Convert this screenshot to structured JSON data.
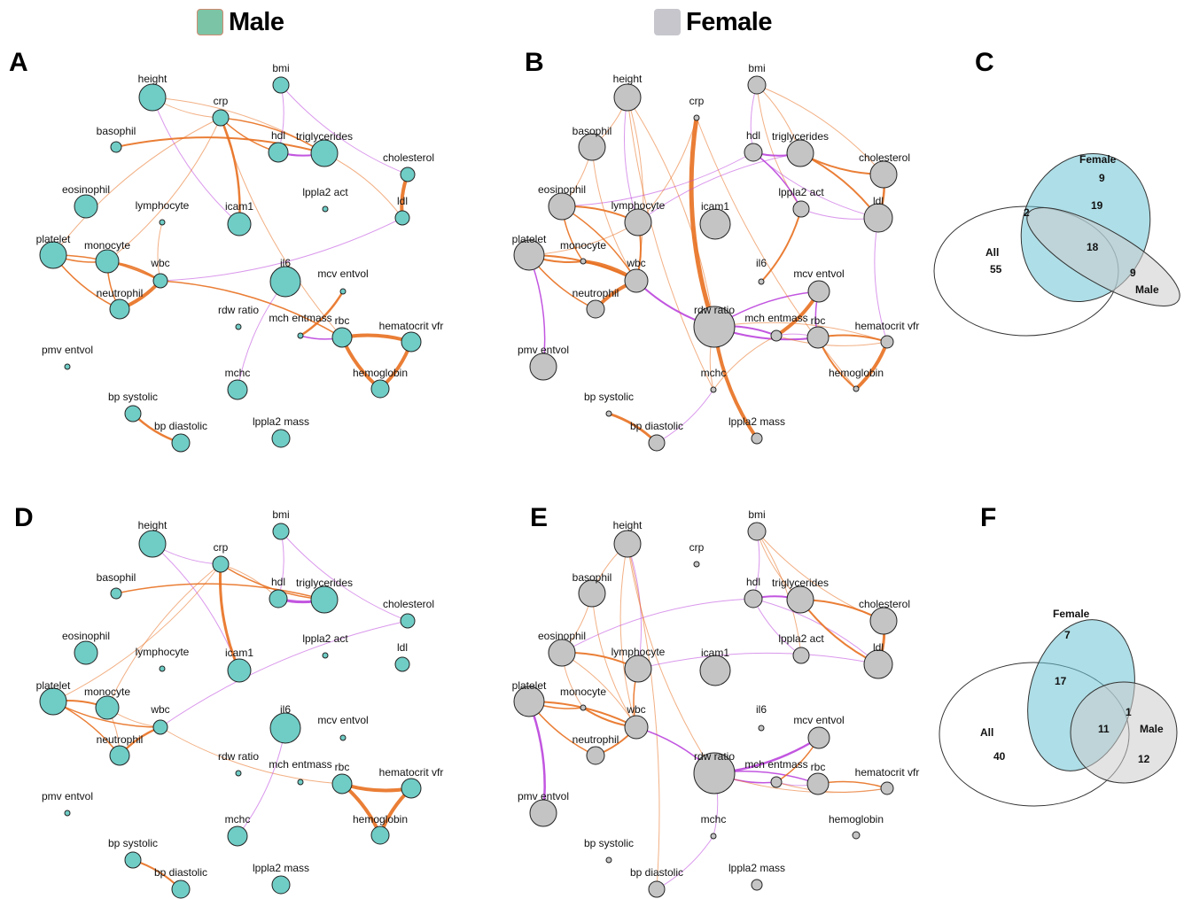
{
  "legend": {
    "male": {
      "label": "Male",
      "color": "#7cc4a6"
    },
    "female": {
      "label": "Female",
      "color": "#c6c6cc"
    }
  },
  "colors": {
    "male_node": "#6fcdc6",
    "female_node": "#c4c4c4",
    "edge_positive": "#e87020",
    "edge_negative": "#bb44dd",
    "venn_female": "#6cc2d4",
    "venn_male": "#cccccc"
  },
  "panels": [
    {
      "letter": "A"
    },
    {
      "letter": "B"
    },
    {
      "letter": "C"
    },
    {
      "letter": "D"
    },
    {
      "letter": "E"
    },
    {
      "letter": "F"
    }
  ],
  "node_labels": {
    "height": "height",
    "bmi": "bmi",
    "crp": "crp",
    "basophil": "basophil",
    "hdl": "hdl",
    "triglycerides": "triglycerides",
    "cholesterol": "cholesterol",
    "eosinophil": "eosinophil",
    "lymphocyte": "lymphocyte",
    "icam1": "icam1",
    "lppla2_act": "lppla2 act",
    "ldl": "ldl",
    "platelet": "platelet",
    "monocyte": "monocyte",
    "wbc": "wbc",
    "il6": "il6",
    "mcv_entvol": "mcv entvol",
    "neutrophil": "neutrophil",
    "rdw_ratio": "rdw ratio",
    "mch_entmass": "mch entmass",
    "rbc": "rbc",
    "hematocrit_vfr": "hematocrit vfr",
    "pmv_entvol": "pmv entvol",
    "mchc": "mchc",
    "hemoglobin": "hemoglobin",
    "bp_systolic": "bp systolic",
    "bp_diastolic": "bp diastolic",
    "lppla2_mass": "lppla2 mass"
  },
  "networks": {
    "A": {
      "sizes": {
        "height": 15,
        "bmi": 9,
        "crp": 9,
        "basophil": 6,
        "hdl": 11,
        "triglycerides": 15,
        "cholesterol": 8,
        "eosinophil": 13,
        "lymphocyte": 3,
        "icam1": 13,
        "lppla2_act": 3,
        "ldl": 8,
        "platelet": 15,
        "monocyte": 13,
        "wbc": 8,
        "il6": 17,
        "mcv_entvol": 3,
        "neutrophil": 11,
        "rdw_ratio": 3,
        "mch_entmass": 3,
        "rbc": 11,
        "hematocrit_vfr": 11,
        "pmv_entvol": 3,
        "mchc": 11,
        "hemoglobin": 10,
        "bp_systolic": 9,
        "bp_diastolic": 10,
        "lppla2_mass": 10
      },
      "edges": [
        [
          "height",
          "crp",
          "pos",
          1
        ],
        [
          "height",
          "triglycerides",
          "pos",
          1
        ],
        [
          "height",
          "icam1",
          "neg",
          1
        ],
        [
          "crp",
          "icam1",
          "pos",
          2.5
        ],
        [
          "crp",
          "hdl",
          "pos",
          1.5
        ],
        [
          "crp",
          "triglycerides",
          "pos",
          1.5
        ],
        [
          "crp",
          "platelet",
          "pos",
          1
        ],
        [
          "crp",
          "monocyte",
          "pos",
          1
        ],
        [
          "crp",
          "rbc",
          "pos",
          1
        ],
        [
          "bmi",
          "hdl",
          "neg",
          1
        ],
        [
          "bmi",
          "cholesterol",
          "neg",
          1
        ],
        [
          "basophil",
          "triglycerides",
          "pos",
          2
        ],
        [
          "hdl",
          "triglycerides",
          "neg",
          2
        ],
        [
          "triglycerides",
          "ldl",
          "pos",
          1
        ],
        [
          "cholesterol",
          "ldl",
          "pos",
          4
        ],
        [
          "ldl",
          "wbc",
          "neg",
          1
        ],
        [
          "platelet",
          "monocyte",
          "pos",
          1.5
        ],
        [
          "platelet",
          "wbc",
          "pos",
          1.5
        ],
        [
          "platelet",
          "neutrophil",
          "pos",
          1.5
        ],
        [
          "monocyte",
          "wbc",
          "pos",
          2
        ],
        [
          "monocyte",
          "neutrophil",
          "pos",
          1.5
        ],
        [
          "wbc",
          "neutrophil",
          "pos",
          4
        ],
        [
          "lymphocyte",
          "wbc",
          "pos",
          1
        ],
        [
          "wbc",
          "rbc",
          "pos",
          1.5
        ],
        [
          "il6",
          "mchc",
          "neg",
          1
        ],
        [
          "mcv_entvol",
          "mch_entmass",
          "pos",
          2.5
        ],
        [
          "mch_entmass",
          "rbc",
          "neg",
          1.5
        ],
        [
          "rbc",
          "hematocrit_vfr",
          "pos",
          4
        ],
        [
          "rbc",
          "hemoglobin",
          "pos",
          4
        ],
        [
          "hematocrit_vfr",
          "hemoglobin",
          "pos",
          4
        ],
        [
          "bp_systolic",
          "bp_diastolic",
          "pos",
          2.5
        ]
      ]
    },
    "B": {
      "sizes": {
        "height": 15,
        "bmi": 10,
        "crp": 3,
        "basophil": 15,
        "hdl": 10,
        "triglycerides": 15,
        "cholesterol": 15,
        "eosinophil": 15,
        "lymphocyte": 15,
        "icam1": 17,
        "lppla2_act": 9,
        "ldl": 16,
        "platelet": 17,
        "monocyte": 3,
        "wbc": 13,
        "il6": 3,
        "mcv_entvol": 12,
        "neutrophil": 10,
        "rdw_ratio": 23,
        "mch_entmass": 6,
        "rbc": 12,
        "hematocrit_vfr": 7,
        "pmv_entvol": 15,
        "mchc": 3,
        "hemoglobin": 3,
        "bp_systolic": 3,
        "bp_diastolic": 9,
        "lppla2_mass": 6
      },
      "edges": [
        [
          "crp",
          "rdw_ratio",
          "pos",
          5
        ],
        [
          "height",
          "basophil",
          "pos",
          1
        ],
        [
          "height",
          "lymphocyte",
          "neg",
          1
        ],
        [
          "height",
          "rdw_ratio",
          "pos",
          1
        ],
        [
          "height",
          "mchc",
          "pos",
          1
        ],
        [
          "height",
          "wbc",
          "pos",
          1
        ],
        [
          "bmi",
          "hdl",
          "neg",
          1
        ],
        [
          "bmi",
          "triglycerides",
          "pos",
          1
        ],
        [
          "bmi",
          "lppla2_act",
          "pos",
          1
        ],
        [
          "bmi",
          "cholesterol",
          "pos",
          1
        ],
        [
          "hdl",
          "triglycerides",
          "neg",
          2
        ],
        [
          "hdl",
          "lppla2_act",
          "neg",
          1.5
        ],
        [
          "hdl",
          "ldl",
          "neg",
          1
        ],
        [
          "hdl",
          "eosinophil",
          "neg",
          1
        ],
        [
          "triglycerides",
          "cholesterol",
          "pos",
          2
        ],
        [
          "triglycerides",
          "ldl",
          "pos",
          2
        ],
        [
          "triglycerides",
          "lymphocyte",
          "neg",
          1
        ],
        [
          "cholesterol",
          "ldl",
          "pos",
          2.5
        ],
        [
          "lppla2_act",
          "ldl",
          "neg",
          1
        ],
        [
          "lppla2_act",
          "il6",
          "pos",
          2
        ],
        [
          "ldl",
          "hematocrit_vfr",
          "neg",
          1
        ],
        [
          "basophil",
          "eosinophil",
          "pos",
          1
        ],
        [
          "basophil",
          "wbc",
          "pos",
          1
        ],
        [
          "eosinophil",
          "lymphocyte",
          "pos",
          2
        ],
        [
          "eosinophil",
          "monocyte",
          "pos",
          1.5
        ],
        [
          "eosinophil",
          "wbc",
          "pos",
          1.5
        ],
        [
          "platelet",
          "monocyte",
          "pos",
          2
        ],
        [
          "platelet",
          "wbc",
          "pos",
          2
        ],
        [
          "platelet",
          "neutrophil",
          "pos",
          1.5
        ],
        [
          "platelet",
          "pmv_entvol",
          "neg",
          1.5
        ],
        [
          "platelet",
          "lymphocyte",
          "pos",
          1
        ],
        [
          "monocyte",
          "wbc",
          "pos",
          4
        ],
        [
          "wbc",
          "neutrophil",
          "pos",
          4
        ],
        [
          "lymphocyte",
          "wbc",
          "pos",
          2
        ],
        [
          "wbc",
          "rdw_ratio",
          "neg",
          2
        ],
        [
          "rdw_ratio",
          "mch_entmass",
          "neg",
          2
        ],
        [
          "rdw_ratio",
          "rbc",
          "neg",
          2
        ],
        [
          "rdw_ratio",
          "mcv_entvol",
          "neg",
          1.5
        ],
        [
          "rdw_ratio",
          "lppla2_mass",
          "pos",
          4
        ],
        [
          "rdw_ratio",
          "hematocrit_vfr",
          "pos",
          1
        ],
        [
          "rdw_ratio",
          "mchc",
          "pos",
          1
        ],
        [
          "mcv_entvol",
          "mch_entmass",
          "pos",
          4
        ],
        [
          "mcv_entvol",
          "rbc",
          "neg",
          1.5
        ],
        [
          "mch_entmass",
          "rbc",
          "neg",
          1
        ],
        [
          "mch_entmass",
          "mchc",
          "pos",
          1
        ],
        [
          "rbc",
          "hematocrit_vfr",
          "pos",
          2
        ],
        [
          "rbc",
          "hemoglobin",
          "pos",
          2
        ],
        [
          "hematocrit_vfr",
          "hemoglobin",
          "pos",
          4
        ],
        [
          "mch_entmass",
          "hematocrit_vfr",
          "pos",
          1
        ],
        [
          "bp_systolic",
          "bp_diastolic",
          "pos",
          3
        ],
        [
          "bp_diastolic",
          "mchc",
          "neg",
          1
        ],
        [
          "crp",
          "lymphocyte",
          "pos",
          1
        ],
        [
          "crp",
          "hemoglobin",
          "pos",
          1
        ]
      ]
    },
    "D": {
      "sizes": {
        "height": 15,
        "bmi": 9,
        "crp": 9,
        "basophil": 6,
        "hdl": 10,
        "triglycerides": 15,
        "cholesterol": 8,
        "eosinophil": 13,
        "lymphocyte": 3,
        "icam1": 13,
        "lppla2_act": 3,
        "ldl": 8,
        "platelet": 15,
        "monocyte": 13,
        "wbc": 8,
        "il6": 17,
        "mcv_entvol": 3,
        "neutrophil": 11,
        "rdw_ratio": 3,
        "mch_entmass": 3,
        "rbc": 11,
        "hematocrit_vfr": 11,
        "pmv_entvol": 3,
        "mchc": 11,
        "hemoglobin": 10,
        "bp_systolic": 9,
        "bp_diastolic": 10,
        "lppla2_mass": 10
      },
      "edges": [
        [
          "height",
          "crp",
          "neg",
          1
        ],
        [
          "height",
          "icam1",
          "neg",
          1
        ],
        [
          "crp",
          "icam1",
          "pos",
          3
        ],
        [
          "crp",
          "hdl",
          "pos",
          1
        ],
        [
          "crp",
          "triglycerides",
          "pos",
          1.5
        ],
        [
          "crp",
          "platelet",
          "pos",
          1
        ],
        [
          "crp",
          "monocyte",
          "pos",
          1
        ],
        [
          "bmi",
          "hdl",
          "neg",
          1
        ],
        [
          "bmi",
          "cholesterol",
          "neg",
          1
        ],
        [
          "basophil",
          "triglycerides",
          "pos",
          1.5
        ],
        [
          "hdl",
          "triglycerides",
          "neg",
          3
        ],
        [
          "platelet",
          "monocyte",
          "pos",
          2
        ],
        [
          "platelet",
          "wbc",
          "pos",
          1.5
        ],
        [
          "platelet",
          "neutrophil",
          "pos",
          1.5
        ],
        [
          "monocyte",
          "wbc",
          "pos",
          1
        ],
        [
          "monocyte",
          "neutrophil",
          "pos",
          1
        ],
        [
          "wbc",
          "neutrophil",
          "pos",
          2.5
        ],
        [
          "wbc",
          "cholesterol",
          "neg",
          1
        ],
        [
          "wbc",
          "rbc",
          "pos",
          1
        ],
        [
          "il6",
          "mchc",
          "neg",
          1
        ],
        [
          "rbc",
          "hematocrit_vfr",
          "pos",
          4
        ],
        [
          "rbc",
          "hemoglobin",
          "pos",
          4
        ],
        [
          "hematocrit_vfr",
          "hemoglobin",
          "pos",
          4
        ],
        [
          "bp_systolic",
          "bp_diastolic",
          "pos",
          2
        ]
      ]
    },
    "E": {
      "sizes": {
        "height": 15,
        "bmi": 10,
        "crp": 3,
        "basophil": 15,
        "hdl": 10,
        "triglycerides": 15,
        "cholesterol": 15,
        "eosinophil": 15,
        "lymphocyte": 15,
        "icam1": 17,
        "lppla2_act": 9,
        "ldl": 16,
        "platelet": 17,
        "monocyte": 3,
        "wbc": 13,
        "il6": 3,
        "mcv_entvol": 12,
        "neutrophil": 10,
        "rdw_ratio": 23,
        "mch_entmass": 6,
        "rbc": 12,
        "hematocrit_vfr": 7,
        "pmv_entvol": 15,
        "mchc": 3,
        "hemoglobin": 4,
        "bp_systolic": 3,
        "bp_diastolic": 9,
        "lppla2_mass": 6
      },
      "edges": [
        [
          "height",
          "basophil",
          "pos",
          1
        ],
        [
          "height",
          "lymphocyte",
          "neg",
          1
        ],
        [
          "height",
          "rdw_ratio",
          "pos",
          1
        ],
        [
          "height",
          "bp_diastolic",
          "pos",
          1
        ],
        [
          "height",
          "wbc",
          "pos",
          1
        ],
        [
          "bmi",
          "hdl",
          "neg",
          1
        ],
        [
          "bmi",
          "triglycerides",
          "pos",
          1
        ],
        [
          "bmi",
          "lppla2_act",
          "pos",
          1
        ],
        [
          "bmi",
          "cholesterol",
          "pos",
          1
        ],
        [
          "hdl",
          "triglycerides",
          "neg",
          2
        ],
        [
          "hdl",
          "lppla2_act",
          "neg",
          1
        ],
        [
          "hdl",
          "ldl",
          "neg",
          1
        ],
        [
          "hdl",
          "eosinophil",
          "neg",
          1
        ],
        [
          "triglycerides",
          "cholesterol",
          "pos",
          2
        ],
        [
          "triglycerides",
          "ldl",
          "pos",
          2
        ],
        [
          "cholesterol",
          "ldl",
          "pos",
          3
        ],
        [
          "ldl",
          "lymphocyte",
          "neg",
          1
        ],
        [
          "basophil",
          "eosinophil",
          "pos",
          1
        ],
        [
          "basophil",
          "wbc",
          "pos",
          1
        ],
        [
          "eosinophil",
          "lymphocyte",
          "pos",
          2
        ],
        [
          "eosinophil",
          "monocyte",
          "pos",
          1
        ],
        [
          "eosinophil",
          "wbc",
          "pos",
          1
        ],
        [
          "platelet",
          "monocyte",
          "pos",
          1.5
        ],
        [
          "platelet",
          "wbc",
          "pos",
          2
        ],
        [
          "platelet",
          "neutrophil",
          "pos",
          1.5
        ],
        [
          "platelet",
          "pmv_entvol",
          "neg",
          2.5
        ],
        [
          "monocyte",
          "wbc",
          "pos",
          2
        ],
        [
          "wbc",
          "neutrophil",
          "pos",
          2
        ],
        [
          "lymphocyte",
          "wbc",
          "pos",
          1.5
        ],
        [
          "wbc",
          "rdw_ratio",
          "neg",
          1.5
        ],
        [
          "rdw_ratio",
          "mch_entmass",
          "neg",
          1.5
        ],
        [
          "rdw_ratio",
          "rbc",
          "neg",
          1.5
        ],
        [
          "rdw_ratio",
          "mcv_entvol",
          "neg",
          2.5
        ],
        [
          "rdw_ratio",
          "mchc",
          "neg",
          1
        ],
        [
          "rdw_ratio",
          "hematocrit_vfr",
          "pos",
          1
        ],
        [
          "mcv_entvol",
          "mch_entmass",
          "pos",
          1.5
        ],
        [
          "mch_entmass",
          "rbc",
          "neg",
          1
        ],
        [
          "rbc",
          "hematocrit_vfr",
          "pos",
          1.5
        ],
        [
          "mch_entmass",
          "hematocrit_vfr",
          "pos",
          1
        ],
        [
          "mchc",
          "bp_diastolic",
          "neg",
          1
        ]
      ]
    }
  },
  "venns": {
    "C": {
      "labels": {
        "all": "All",
        "female": "Female",
        "male": "Male"
      },
      "counts": {
        "all_only": "55",
        "female_only": "9",
        "male_only": "9",
        "all_female": "19",
        "all_female_male": "18",
        "all_male": "2"
      }
    },
    "F": {
      "labels": {
        "all": "All",
        "female": "Female",
        "male": "Male"
      },
      "counts": {
        "all_only": "40",
        "female_only": "7",
        "male_only": "12",
        "all_female": "17",
        "all_female_male": "11",
        "female_male": "1"
      }
    }
  }
}
